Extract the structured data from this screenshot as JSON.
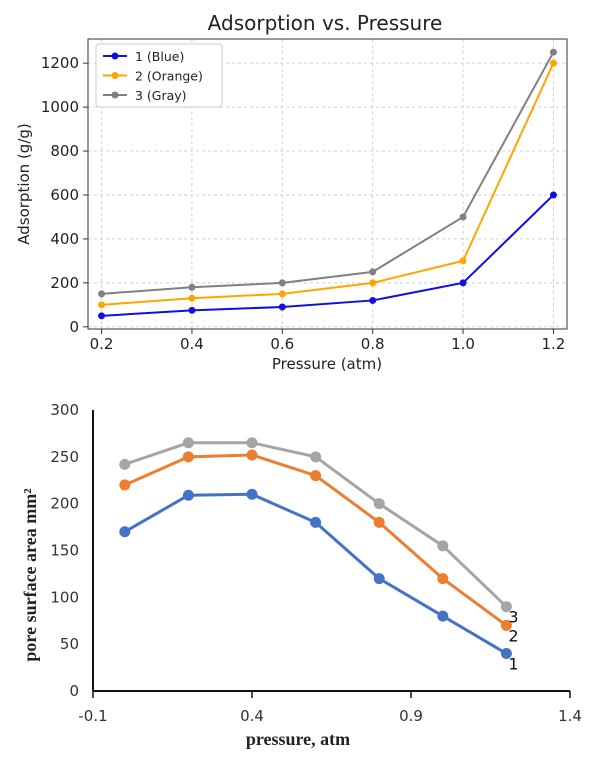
{
  "chart_data": [
    {
      "type": "line",
      "title": "Adsorption vs. Pressure",
      "xlabel": "Pressure (atm)",
      "ylabel": "Adsorption (g/g)",
      "x": [
        0.2,
        0.4,
        0.6,
        0.8,
        1.0,
        1.2
      ],
      "xticks": [
        "0.2",
        "0.4",
        "0.6",
        "0.8",
        "1.0",
        "1.2"
      ],
      "yticks": [
        "0",
        "200",
        "400",
        "600",
        "800",
        "1000",
        "1200"
      ],
      "xlim": [
        0.17,
        1.23
      ],
      "ylim": [
        -10,
        1310
      ],
      "grid": true,
      "legend_position": "top-left",
      "series": [
        {
          "name": "1 (Blue)",
          "color": "#1010e0",
          "values": [
            50,
            75,
            90,
            120,
            200,
            600
          ]
        },
        {
          "name": "2 (Orange)",
          "color": "#ffa500",
          "values": [
            100,
            130,
            150,
            200,
            300,
            1200
          ]
        },
        {
          "name": "3 (Gray)",
          "color": "#808080",
          "values": [
            150,
            180,
            200,
            250,
            500,
            1250
          ]
        }
      ]
    },
    {
      "type": "line",
      "xlabel": "pressure, atm",
      "ylabel": "pore surface area mm²",
      "x": [
        0,
        0.2,
        0.4,
        0.6,
        0.8,
        1.0,
        1.2
      ],
      "xticks": [
        "-0.1",
        "0.4",
        "0.9",
        "1.4"
      ],
      "yticks": [
        "0",
        "50",
        "100",
        "150",
        "200",
        "250",
        "300"
      ],
      "xlim": [
        -0.1,
        1.4
      ],
      "ylim": [
        0,
        300
      ],
      "grid": false,
      "series": [
        {
          "name": "1",
          "color": "#4472c4",
          "values": [
            170,
            209,
            210,
            180,
            120,
            80,
            40
          ]
        },
        {
          "name": "2",
          "color": "#ed7d31",
          "values": [
            220,
            250,
            252,
            230,
            180,
            120,
            70
          ]
        },
        {
          "name": "3",
          "color": "#a5a5a5",
          "values": [
            242,
            265,
            265,
            250,
            200,
            155,
            90
          ]
        }
      ]
    }
  ]
}
